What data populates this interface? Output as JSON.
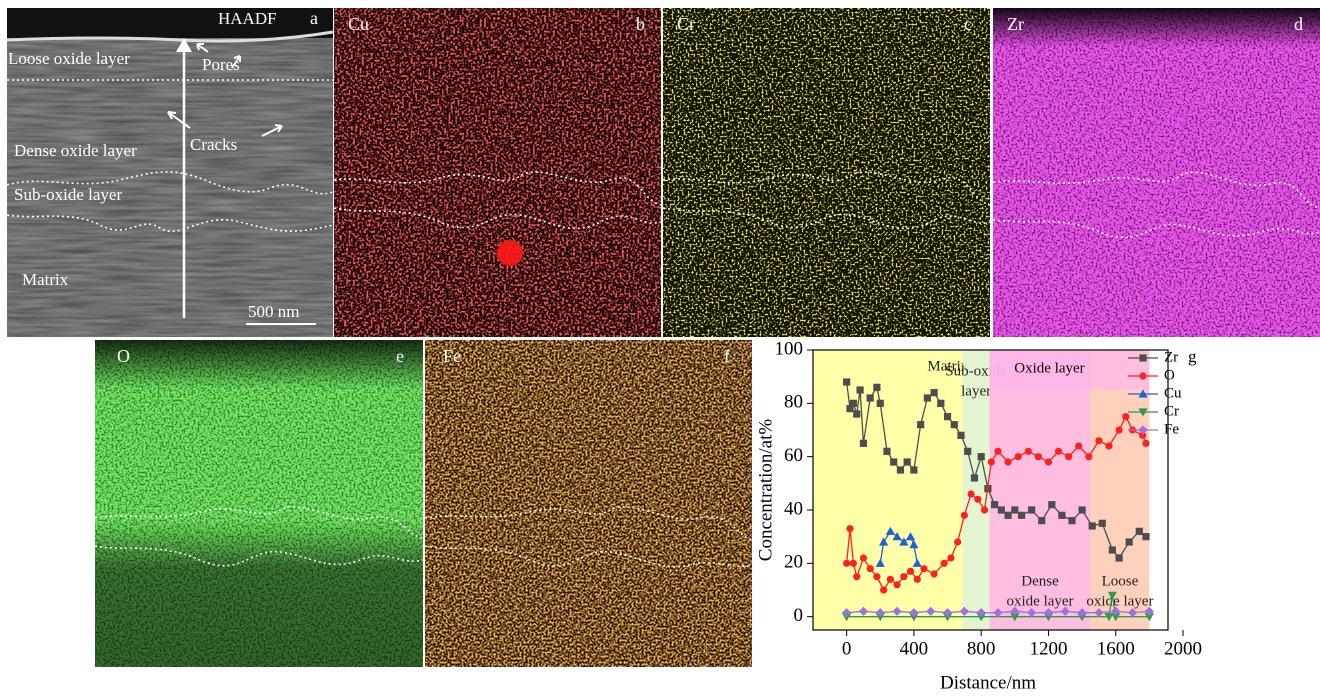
{
  "panels": [
    {
      "element": "HAADF",
      "letter": "a",
      "annotations": [
        "Loose oxide layer",
        "Pores",
        "Dense oxide layer",
        "Cracks",
        "Sub-oxide layer",
        "Matrix",
        "500 nm"
      ]
    },
    {
      "element": "Cu",
      "letter": "b"
    },
    {
      "element": "Cr",
      "letter": "c"
    },
    {
      "element": "Zr",
      "letter": "d"
    },
    {
      "element": "O",
      "letter": "e"
    },
    {
      "element": "Fe",
      "letter": "f"
    }
  ],
  "chart_data": {
    "type": "line",
    "letter": "g",
    "x_label": "Distance/nm",
    "y_label": "Concentration/at%",
    "xlim": [
      -200,
      2000
    ],
    "ylim": [
      -5,
      100
    ],
    "xticks": [
      0,
      400,
      800,
      1200,
      1600,
      2000
    ],
    "yticks": [
      0,
      20,
      40,
      60,
      80,
      100
    ],
    "regions": [
      {
        "label": [
          "Matrix"
        ],
        "start": -200,
        "end": 690,
        "color": "#ffff99"
      },
      {
        "label": [
          "Sub-oxide",
          "layer"
        ],
        "start": 690,
        "end": 850,
        "color": "#ddf2c8"
      },
      {
        "label": [
          "Dense",
          "oxide layer"
        ],
        "start": 850,
        "end": 1450,
        "color": "#ffb3d9"
      },
      {
        "label": [
          "Loose",
          "oxide layer"
        ],
        "start": 1450,
        "end": 1800,
        "color": "#ffc8b0"
      }
    ],
    "annotation": "Oxide layer",
    "series": [
      {
        "name": "Zr",
        "color": "#4d4d4d",
        "marker": "square",
        "x": [
          0,
          20,
          40,
          60,
          80,
          100,
          140,
          180,
          200,
          240,
          280,
          320,
          360,
          400,
          440,
          480,
          520,
          560,
          600,
          640,
          680,
          720,
          760,
          800,
          840,
          880,
          920,
          960,
          1000,
          1040,
          1100,
          1160,
          1220,
          1280,
          1340,
          1400,
          1460,
          1520,
          1580,
          1620,
          1680,
          1740,
          1780
        ],
        "values": [
          88,
          78,
          80,
          76,
          85,
          65,
          82,
          86,
          80,
          62,
          58,
          55,
          58,
          55,
          72,
          82,
          84,
          80,
          75,
          72,
          68,
          62,
          52,
          60,
          48,
          42,
          40,
          38,
          40,
          38,
          40,
          36,
          42,
          38,
          36,
          40,
          34,
          35,
          25,
          22,
          28,
          32,
          30
        ]
      },
      {
        "name": "O",
        "color": "#ff2020",
        "marker": "circle",
        "x": [
          0,
          20,
          40,
          60,
          100,
          140,
          180,
          220,
          260,
          300,
          340,
          380,
          420,
          460,
          520,
          580,
          620,
          660,
          700,
          740,
          780,
          820,
          860,
          900,
          960,
          1020,
          1080,
          1140,
          1200,
          1260,
          1320,
          1380,
          1440,
          1500,
          1560,
          1620,
          1660,
          1700,
          1760,
          1780
        ],
        "values": [
          20,
          33,
          20,
          15,
          22,
          18,
          15,
          10,
          14,
          12,
          15,
          17,
          14,
          18,
          16,
          20,
          22,
          28,
          38,
          46,
          44,
          40,
          58,
          62,
          58,
          60,
          62,
          60,
          58,
          62,
          60,
          64,
          60,
          66,
          64,
          70,
          75,
          70,
          68,
          65
        ]
      },
      {
        "name": "Cu",
        "color": "#1f5fd8",
        "marker": "triangle",
        "x": [
          200,
          220,
          260,
          300,
          340,
          380,
          400,
          420
        ],
        "values": [
          20,
          28,
          32,
          30,
          28,
          30,
          27,
          20
        ]
      },
      {
        "name": "Cr",
        "color": "#2e9a4a",
        "marker": "triangle-down",
        "x": [
          0,
          200,
          400,
          600,
          800,
          1000,
          1200,
          1400,
          1560,
          1580,
          1600,
          1800
        ],
        "values": [
          0,
          0,
          0,
          0,
          0,
          0,
          0,
          0,
          0,
          8,
          0,
          0
        ]
      },
      {
        "name": "Fe",
        "color": "#a070e0",
        "marker": "diamond",
        "x": [
          0,
          100,
          200,
          300,
          400,
          500,
          600,
          700,
          800,
          900,
          1000,
          1100,
          1200,
          1300,
          1400,
          1500,
          1600,
          1700,
          1800
        ],
        "values": [
          1.5,
          2,
          1.5,
          2,
          1.5,
          2,
          1.5,
          2,
          1.5,
          1.5,
          2,
          1.5,
          1.5,
          2,
          1.5,
          1.5,
          2,
          1.5,
          2
        ]
      }
    ],
    "legend": "top-right"
  }
}
